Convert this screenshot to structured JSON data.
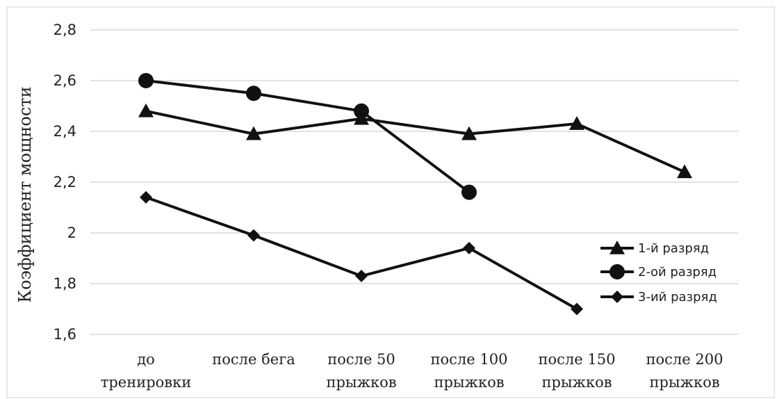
{
  "chart_data": {
    "type": "line",
    "ylabel": "Коэффициент  мощности",
    "xlabel": "",
    "ylim": [
      1.6,
      2.8
    ],
    "yticks": [
      1.6,
      1.8,
      2.0,
      2.2,
      2.4,
      2.6,
      2.8
    ],
    "ytick_labels": [
      "1,6",
      "1,8",
      "2",
      "2,2",
      "2,4",
      "2,6",
      "2,8"
    ],
    "grid": "horizontal",
    "legend_position": "right",
    "categories": [
      [
        "до",
        "тренировки"
      ],
      [
        "после бега"
      ],
      [
        "после 50",
        "прыжков"
      ],
      [
        "после 100",
        "прыжков"
      ],
      [
        "после 150",
        "прыжков"
      ],
      [
        "после 200",
        "прыжков"
      ]
    ],
    "series": [
      {
        "name": "1-й разряд",
        "marker": "triangle",
        "values": [
          2.48,
          2.39,
          2.45,
          2.39,
          2.43,
          2.24
        ]
      },
      {
        "name": "2-ой разряд",
        "marker": "circle",
        "values": [
          2.6,
          2.55,
          2.48,
          2.16,
          null,
          null
        ]
      },
      {
        "name": "3-ий разряд",
        "marker": "diamond",
        "values": [
          2.14,
          1.99,
          1.83,
          1.94,
          1.7,
          null
        ]
      }
    ],
    "colors": {
      "line": "#111111",
      "grid": "#d9d9d9",
      "frame": "#d0d0d0"
    }
  }
}
